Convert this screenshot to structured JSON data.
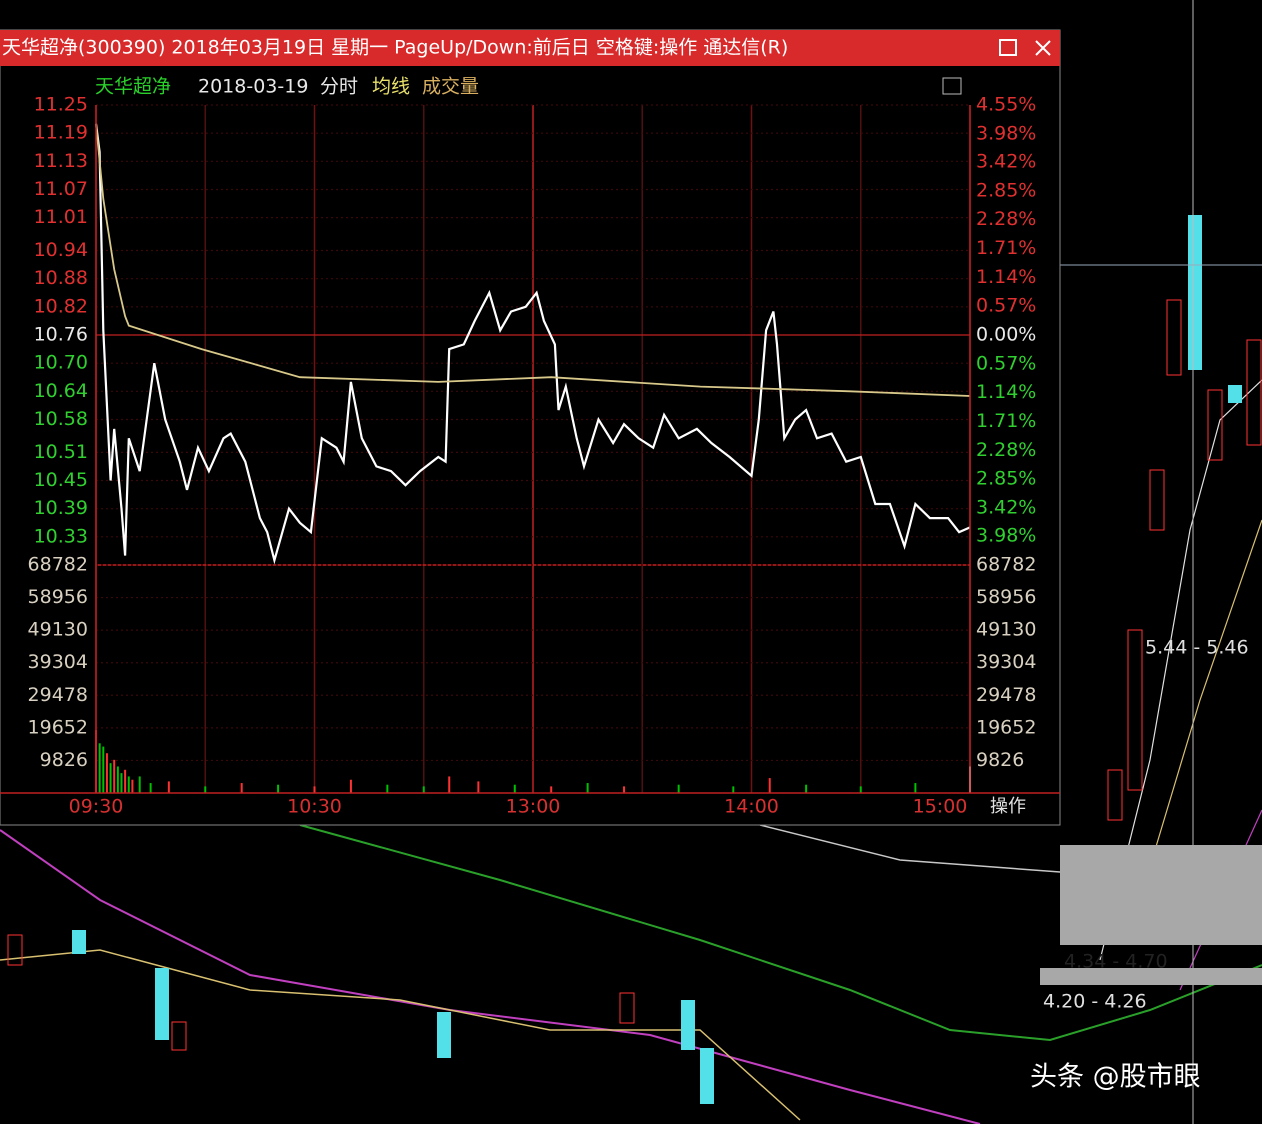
{
  "window": {
    "title": "天华超净(300390) 2018年03月19日 星期一 PageUp/Down:前后日 空格键:操作 通达信(R)"
  },
  "header": {
    "name": "天华超净",
    "date": "2018-03-19",
    "mode": "分时",
    "avg_label": "均线",
    "vol_label": "成交量"
  },
  "corner_label": "操作",
  "kline_labels": [
    "5.44 - 5.46",
    "4.34 - 4.70",
    "4.20 - 4.26"
  ],
  "watermark": "头条 @股市眼",
  "chart_data": [
    {
      "type": "line",
      "xlim": [
        0,
        240
      ],
      "xticks": [
        {
          "value": 0,
          "label": "09:30"
        },
        {
          "value": 60,
          "label": "10:30"
        },
        {
          "value": 120,
          "label": "13:00"
        },
        {
          "value": 180,
          "label": "14:00"
        },
        {
          "value": 240,
          "label": "15:00"
        }
      ],
      "ylim": [
        10.27,
        11.25
      ],
      "yticks": [
        11.25,
        11.19,
        11.13,
        11.07,
        11.01,
        10.94,
        10.88,
        10.82,
        10.76,
        {
          "value": 10.7,
          "label": "10.70"
        },
        10.64,
        10.58,
        10.51,
        10.45,
        10.39,
        10.33
      ],
      "y2lim": [
        -4.55,
        4.55
      ],
      "y2ticks": [
        {
          "value": 4.55,
          "label": "4.55%"
        },
        {
          "value": 3.98,
          "label": "3.98%"
        },
        {
          "value": 3.42,
          "label": "3.42%"
        },
        {
          "value": 2.85,
          "label": "2.85%"
        },
        {
          "value": 2.28,
          "label": "2.28%"
        },
        {
          "value": 1.71,
          "label": "1.71%"
        },
        {
          "value": 1.14,
          "label": "1.14%"
        },
        {
          "value": 0.57,
          "label": "0.57%"
        },
        {
          "value": 0,
          "label": "0.00%"
        },
        {
          "value": -0.57,
          "label": "0.57%"
        },
        {
          "value": -1.14,
          "label": "1.14%"
        },
        {
          "value": -1.71,
          "label": "1.71%"
        },
        {
          "value": -2.28,
          "label": "2.28%"
        },
        {
          "value": -2.85,
          "label": "2.85%"
        },
        {
          "value": -3.42,
          "label": "3.42%"
        },
        {
          "value": -3.98,
          "label": "3.98%"
        }
      ],
      "grid": true,
      "series": [
        {
          "color": "#ffffff",
          "x": [
            0,
            1,
            2,
            4,
            5,
            7,
            8,
            9,
            12,
            16,
            19,
            23,
            25,
            28,
            31,
            35,
            37,
            41,
            45,
            47,
            49,
            53,
            56,
            59,
            62,
            66,
            68,
            70,
            73,
            77,
            81,
            85,
            89,
            94,
            96,
            97,
            101,
            104,
            108,
            111,
            114,
            118,
            121,
            123,
            126,
            127,
            129,
            132,
            134,
            138,
            142,
            145,
            149,
            153,
            156,
            160,
            165,
            169,
            174,
            180,
            182,
            184,
            186,
            187,
            189,
            192,
            195,
            198,
            202,
            206,
            210,
            214,
            218,
            222,
            225,
            229,
            234,
            237,
            240
          ],
          "values": [
            11.21,
            11.15,
            10.77,
            10.45,
            10.56,
            10.39,
            10.29,
            10.54,
            10.47,
            10.7,
            10.58,
            10.49,
            10.43,
            10.52,
            10.47,
            10.54,
            10.55,
            10.49,
            10.37,
            10.34,
            10.28,
            10.39,
            10.36,
            10.34,
            10.54,
            10.52,
            10.49,
            10.66,
            10.54,
            10.48,
            10.47,
            10.44,
            10.47,
            10.5,
            10.49,
            10.73,
            10.74,
            10.79,
            10.85,
            10.77,
            10.81,
            10.82,
            10.85,
            10.79,
            10.74,
            10.6,
            10.65,
            10.54,
            10.48,
            10.58,
            10.53,
            10.57,
            10.54,
            10.52,
            10.59,
            10.54,
            10.56,
            10.53,
            10.5,
            10.46,
            10.58,
            10.77,
            10.81,
            10.74,
            10.54,
            10.58,
            10.6,
            10.54,
            10.55,
            10.49,
            10.5,
            10.4,
            10.4,
            10.31,
            10.4,
            10.37,
            10.37,
            10.34,
            10.35
          ]
        },
        {
          "color": "#d8c98a",
          "x": [
            0,
            2,
            5,
            8,
            9,
            29,
            56,
            94,
            125,
            166,
            207,
            240
          ],
          "values": [
            11.21,
            11.05,
            10.9,
            10.8,
            10.78,
            10.73,
            10.67,
            10.66,
            10.67,
            10.65,
            10.64,
            10.63
          ]
        }
      ]
    },
    {
      "type": "bar",
      "xlim": [
        0,
        240
      ],
      "ylim": [
        0,
        68782
      ],
      "yticks": [
        68782,
        58956,
        49130,
        39304,
        29478,
        19652,
        9826
      ],
      "x": [
        0,
        1,
        2,
        3,
        4,
        5,
        6,
        7,
        8,
        9,
        10,
        12,
        15,
        20,
        30,
        40,
        50,
        60,
        70,
        80,
        90,
        97,
        105,
        115,
        125,
        135,
        145,
        160,
        175,
        185,
        195,
        210,
        225,
        240
      ],
      "values": [
        19000,
        15000,
        14000,
        12000,
        9000,
        10000,
        8000,
        6000,
        7000,
        5000,
        4000,
        5000,
        3000,
        3500,
        2000,
        3000,
        2500,
        2000,
        4000,
        2500,
        2000,
        5000,
        3500,
        2500,
        2000,
        3000,
        2000,
        2500,
        2000,
        4500,
        2500,
        2000,
        3000,
        8000
      ],
      "colors": [
        "#ff3232",
        "#00c000",
        "#00c000",
        "#ff3232",
        "#00c000",
        "#ff3232",
        "#00c000",
        "#00c000",
        "#ff3232",
        "#00c000",
        "#ff3232",
        "#00c000",
        "#00c000",
        "#ff3232",
        "#00c000",
        "#ff3232",
        "#00c000",
        "#ff3232",
        "#ff3232",
        "#00c000",
        "#00c000",
        "#ff3232",
        "#ff3232",
        "#00c000",
        "#ff3232",
        "#00c000",
        "#ff3232",
        "#00c000",
        "#00c000",
        "#ff3232",
        "#00c000",
        "#00c000",
        "#00c000",
        "#ffffff"
      ]
    }
  ]
}
